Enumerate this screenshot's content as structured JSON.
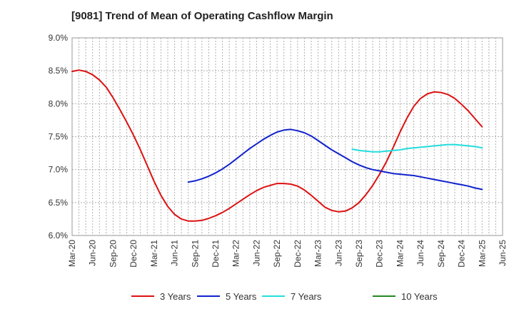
{
  "chart_data": {
    "type": "line",
    "title": "[9081]  Trend of Mean of Operating Cashflow Margin",
    "xlabel": "",
    "ylabel": "",
    "ylim": [
      6.0,
      9.0
    ],
    "yticks": [
      "6.0%",
      "6.5%",
      "7.0%",
      "7.5%",
      "8.0%",
      "8.5%",
      "9.0%"
    ],
    "xticks": [
      "Mar-20",
      "Jun-20",
      "Sep-20",
      "Dec-20",
      "Mar-21",
      "Jun-21",
      "Sep-21",
      "Dec-21",
      "Mar-22",
      "Jun-22",
      "Sep-22",
      "Dec-22",
      "Mar-23",
      "Jun-23",
      "Sep-23",
      "Dec-23",
      "Mar-24",
      "Jun-24",
      "Sep-24",
      "Dec-24",
      "Mar-25",
      "Jun-25"
    ],
    "grid": true,
    "legend_position": "bottom",
    "series": [
      {
        "name": "3 Years",
        "color": "#dd1111",
        "points": [
          [
            "Mar-20",
            8.49
          ],
          [
            "Apr-20",
            8.51
          ],
          [
            "May-20",
            8.49
          ],
          [
            "Jun-20",
            8.44
          ],
          [
            "Jul-20",
            8.36
          ],
          [
            "Aug-20",
            8.25
          ],
          [
            "Sep-20",
            8.09
          ],
          [
            "Oct-20",
            7.91
          ],
          [
            "Nov-20",
            7.72
          ],
          [
            "Dec-20",
            7.52
          ],
          [
            "Jan-21",
            7.3
          ],
          [
            "Feb-21",
            7.06
          ],
          [
            "Mar-21",
            6.82
          ],
          [
            "Apr-21",
            6.61
          ],
          [
            "May-21",
            6.44
          ],
          [
            "Jun-21",
            6.32
          ],
          [
            "Jul-21",
            6.25
          ],
          [
            "Aug-21",
            6.22
          ],
          [
            "Sep-21",
            6.22
          ],
          [
            "Oct-21",
            6.23
          ],
          [
            "Nov-21",
            6.26
          ],
          [
            "Dec-21",
            6.3
          ],
          [
            "Jan-22",
            6.35
          ],
          [
            "Feb-22",
            6.41
          ],
          [
            "Mar-22",
            6.48
          ],
          [
            "Apr-22",
            6.55
          ],
          [
            "May-22",
            6.62
          ],
          [
            "Jun-22",
            6.68
          ],
          [
            "Jul-22",
            6.73
          ],
          [
            "Aug-22",
            6.76
          ],
          [
            "Sep-22",
            6.79
          ],
          [
            "Oct-22",
            6.79
          ],
          [
            "Nov-22",
            6.78
          ],
          [
            "Dec-22",
            6.75
          ],
          [
            "Jan-23",
            6.69
          ],
          [
            "Feb-23",
            6.61
          ],
          [
            "Mar-23",
            6.52
          ],
          [
            "Apr-23",
            6.43
          ],
          [
            "May-23",
            6.38
          ],
          [
            "Jun-23",
            6.36
          ],
          [
            "Jul-23",
            6.37
          ],
          [
            "Aug-23",
            6.42
          ],
          [
            "Sep-23",
            6.5
          ],
          [
            "Oct-23",
            6.62
          ],
          [
            "Nov-23",
            6.76
          ],
          [
            "Dec-23",
            6.93
          ],
          [
            "Jan-24",
            7.12
          ],
          [
            "Feb-24",
            7.34
          ],
          [
            "Mar-24",
            7.57
          ],
          [
            "Apr-24",
            7.78
          ],
          [
            "May-24",
            7.96
          ],
          [
            "Jun-24",
            8.08
          ],
          [
            "Jul-24",
            8.15
          ],
          [
            "Aug-24",
            8.18
          ],
          [
            "Sep-24",
            8.17
          ],
          [
            "Oct-24",
            8.14
          ],
          [
            "Nov-24",
            8.08
          ],
          [
            "Dec-24",
            7.99
          ],
          [
            "Jan-25",
            7.89
          ],
          [
            "Feb-25",
            7.77
          ],
          [
            "Mar-25",
            7.65
          ]
        ]
      },
      {
        "name": "5 Years",
        "color": "#1122cc",
        "points": [
          [
            "Aug-21",
            6.81
          ],
          [
            "Sep-21",
            6.83
          ],
          [
            "Oct-21",
            6.86
          ],
          [
            "Nov-21",
            6.9
          ],
          [
            "Dec-21",
            6.95
          ],
          [
            "Jan-22",
            7.01
          ],
          [
            "Feb-22",
            7.08
          ],
          [
            "Mar-22",
            7.16
          ],
          [
            "Apr-22",
            7.24
          ],
          [
            "May-22",
            7.32
          ],
          [
            "Jun-22",
            7.39
          ],
          [
            "Jul-22",
            7.46
          ],
          [
            "Aug-22",
            7.52
          ],
          [
            "Sep-22",
            7.57
          ],
          [
            "Oct-22",
            7.6
          ],
          [
            "Nov-22",
            7.61
          ],
          [
            "Dec-22",
            7.59
          ],
          [
            "Jan-23",
            7.56
          ],
          [
            "Feb-23",
            7.51
          ],
          [
            "Mar-23",
            7.44
          ],
          [
            "Apr-23",
            7.37
          ],
          [
            "May-23",
            7.3
          ],
          [
            "Jun-23",
            7.24
          ],
          [
            "Jul-23",
            7.18
          ],
          [
            "Aug-23",
            7.12
          ],
          [
            "Sep-23",
            7.07
          ],
          [
            "Oct-23",
            7.03
          ],
          [
            "Nov-23",
            7.0
          ],
          [
            "Dec-23",
            6.98
          ],
          [
            "Jan-24",
            6.96
          ],
          [
            "Feb-24",
            6.94
          ],
          [
            "Mar-24",
            6.93
          ],
          [
            "Apr-24",
            6.92
          ],
          [
            "May-24",
            6.91
          ],
          [
            "Jun-24",
            6.89
          ],
          [
            "Jul-24",
            6.87
          ],
          [
            "Aug-24",
            6.85
          ],
          [
            "Sep-24",
            6.83
          ],
          [
            "Oct-24",
            6.81
          ],
          [
            "Nov-24",
            6.79
          ],
          [
            "Dec-24",
            6.77
          ],
          [
            "Jan-25",
            6.75
          ],
          [
            "Feb-25",
            6.72
          ],
          [
            "Mar-25",
            6.7
          ]
        ]
      },
      {
        "name": "7 Years",
        "color": "#22dddd",
        "points": [
          [
            "Aug-23",
            7.31
          ],
          [
            "Sep-23",
            7.29
          ],
          [
            "Oct-23",
            7.28
          ],
          [
            "Nov-23",
            7.27
          ],
          [
            "Dec-23",
            7.27
          ],
          [
            "Jan-24",
            7.28
          ],
          [
            "Feb-24",
            7.29
          ],
          [
            "Mar-24",
            7.3
          ],
          [
            "Apr-24",
            7.32
          ],
          [
            "May-24",
            7.33
          ],
          [
            "Jun-24",
            7.34
          ],
          [
            "Jul-24",
            7.35
          ],
          [
            "Aug-24",
            7.36
          ],
          [
            "Sep-24",
            7.37
          ],
          [
            "Oct-24",
            7.38
          ],
          [
            "Nov-24",
            7.38
          ],
          [
            "Dec-24",
            7.37
          ],
          [
            "Jan-25",
            7.36
          ],
          [
            "Feb-25",
            7.35
          ],
          [
            "Mar-25",
            7.33
          ]
        ]
      },
      {
        "name": "10 Years",
        "color": "#228822",
        "points": []
      }
    ]
  }
}
